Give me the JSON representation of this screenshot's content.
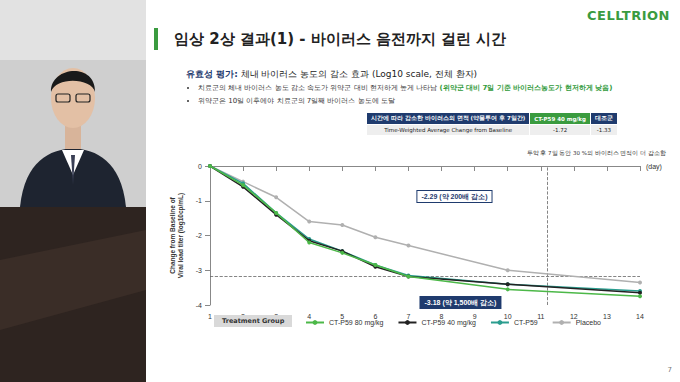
{
  "slide": {
    "logo": "CELLTRION",
    "title": "임상 2상 결과(1) - 바이러스 음전까지 걸린 시간",
    "section_label": "유효성 평가:",
    "section_text": " 체내 바이러스 농도의 감소 효과 (Log10 scale, 전체 환자)",
    "bullets": [
      [
        {
          "text": "치료군의 체내 바이러스 농도 감소 속도가 위약군 대비 현저하게 높게 나타남 ",
          "highlight": false
        },
        {
          "text": "(위약군 대비 7일 기준 바이러스농도가 현저하게 낮음)",
          "highlight": true
        }
      ],
      [
        {
          "text": "위약군은 10일 이후에야 치료군의 7일째 바이러스 농도에 도달",
          "highlight": false
        }
      ]
    ],
    "table": {
      "header": [
        "시간에 따라 감소한 바이러스의 면적 (약물투여 후 7일간)",
        "CT-P59 40 mg/kg",
        "대조군"
      ],
      "rows": [
        [
          "Time-Weighted Average Change from Baseline",
          -1.72,
          -1.33
        ]
      ]
    },
    "table_note": "투약 후 7일 동안 30 %의 바이러스 면적이 더 감소함",
    "legend_title": "Treatment Group",
    "page_number": "7"
  },
  "chart_data": {
    "type": "line",
    "x_label": "(day)",
    "y_label": "Change from Baseline of\nViral load titer (log10cp/mL)",
    "x": [
      1,
      2,
      3,
      4,
      5,
      6,
      7,
      10,
      14
    ],
    "xlim": [
      1,
      14
    ],
    "xticks": [
      1,
      2,
      3,
      4,
      5,
      6,
      7,
      8,
      9,
      10,
      11,
      12,
      13,
      14
    ],
    "ylim": [
      -4,
      0
    ],
    "yticks": [
      -4,
      -3,
      -2,
      -1,
      0
    ],
    "grid": false,
    "legend": "bottom",
    "marker": "circle",
    "series": [
      {
        "name": "CT-P59 80 mg/kg",
        "color": "#4cb848",
        "values": [
          0,
          -0.55,
          -1.35,
          -2.2,
          -2.5,
          -2.85,
          -3.18,
          -3.55,
          -3.75
        ]
      },
      {
        "name": "CT-P59 40 mg/kg",
        "color": "#222222",
        "values": [
          0,
          -0.6,
          -1.4,
          -2.15,
          -2.45,
          -2.9,
          -3.18,
          -3.4,
          -3.65
        ]
      },
      {
        "name": "CT-P59",
        "color": "#2a9d8f",
        "values": [
          0,
          -0.5,
          -1.35,
          -2.1,
          -2.45,
          -2.85,
          -3.15,
          -3.4,
          -3.6
        ]
      },
      {
        "name": "Placebo",
        "color": "#b0b0b0",
        "values": [
          0,
          -0.45,
          -0.9,
          -1.6,
          -1.7,
          -2.05,
          -2.29,
          -3.0,
          -3.35
        ]
      }
    ],
    "annotations": [
      {
        "text": "-2.29 (약 200배 감소)",
        "x": 7,
        "y": -2.29
      },
      {
        "text": "-3.18 (약 1,500배 감소)",
        "x": 7,
        "y": -3.18
      }
    ],
    "reference_lines": {
      "y": -3.18,
      "x": 11.2
    }
  }
}
